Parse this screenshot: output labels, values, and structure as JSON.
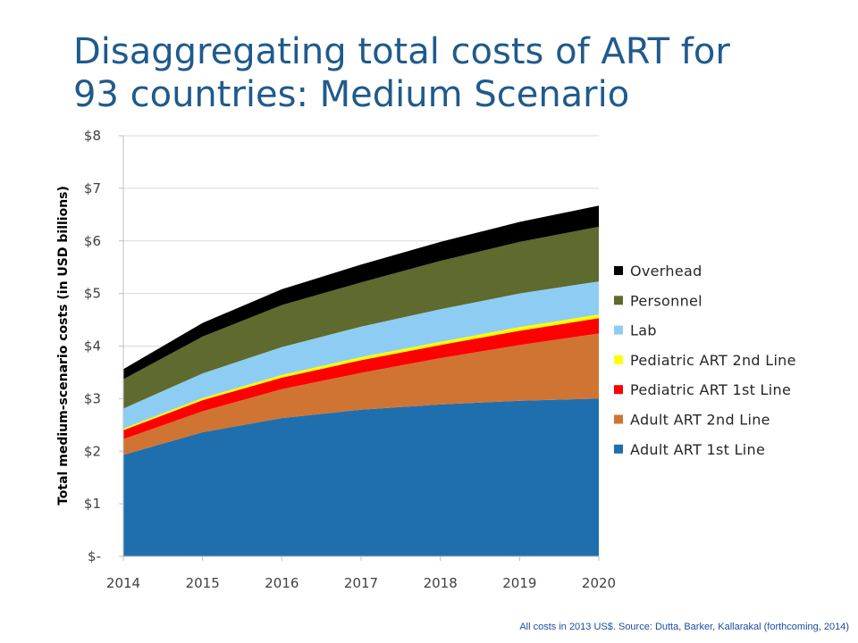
{
  "slide": {
    "title_line1": "Disaggregating total costs of ART for",
    "title_line2": "93 countries: Medium Scenario",
    "footnote": "All costs in 2013 US$. Source: Dutta, Barker, Kallarakal (forthcoming, 2014)"
  },
  "chart_data": {
    "type": "area",
    "stacked": true,
    "title": "",
    "xlabel": "",
    "ylabel": "Total medium-scenario costs (in USD billions)",
    "x": [
      2014,
      2015,
      2016,
      2017,
      2018,
      2019,
      2020
    ],
    "ylim": [
      0,
      8
    ],
    "yticks": [
      0,
      1,
      2,
      3,
      4,
      5,
      6,
      7,
      8
    ],
    "ytick_labels": [
      "$-",
      "$1",
      "$2",
      "$3",
      "$4",
      "$5",
      "$6",
      "$7",
      "$8"
    ],
    "grid": true,
    "legend_position": "right",
    "series": [
      {
        "name": "Adult ART 1st Line",
        "color": "#1f6fae",
        "values": [
          1.93,
          2.36,
          2.63,
          2.79,
          2.89,
          2.96,
          3.0
        ]
      },
      {
        "name": "Adult ART 2nd Line",
        "color": "#d07433",
        "values": [
          0.3,
          0.4,
          0.55,
          0.7,
          0.88,
          1.06,
          1.24
        ]
      },
      {
        "name": "Pediatric ART 1st Line",
        "color": "#ff0000",
        "values": [
          0.17,
          0.21,
          0.22,
          0.24,
          0.25,
          0.27,
          0.29
        ]
      },
      {
        "name": "Pediatric ART 2nd Line",
        "color": "#ffff00",
        "values": [
          0.03,
          0.04,
          0.05,
          0.06,
          0.06,
          0.07,
          0.07
        ]
      },
      {
        "name": "Lab",
        "color": "#8ecdf3",
        "values": [
          0.38,
          0.47,
          0.53,
          0.58,
          0.62,
          0.64,
          0.63
        ]
      },
      {
        "name": "Personnel",
        "color": "#5e6a2e",
        "values": [
          0.56,
          0.7,
          0.8,
          0.84,
          0.92,
          0.98,
          1.04
        ]
      },
      {
        "name": "Overhead",
        "color": "#000000",
        "values": [
          0.19,
          0.26,
          0.3,
          0.34,
          0.36,
          0.38,
          0.4
        ]
      }
    ]
  }
}
